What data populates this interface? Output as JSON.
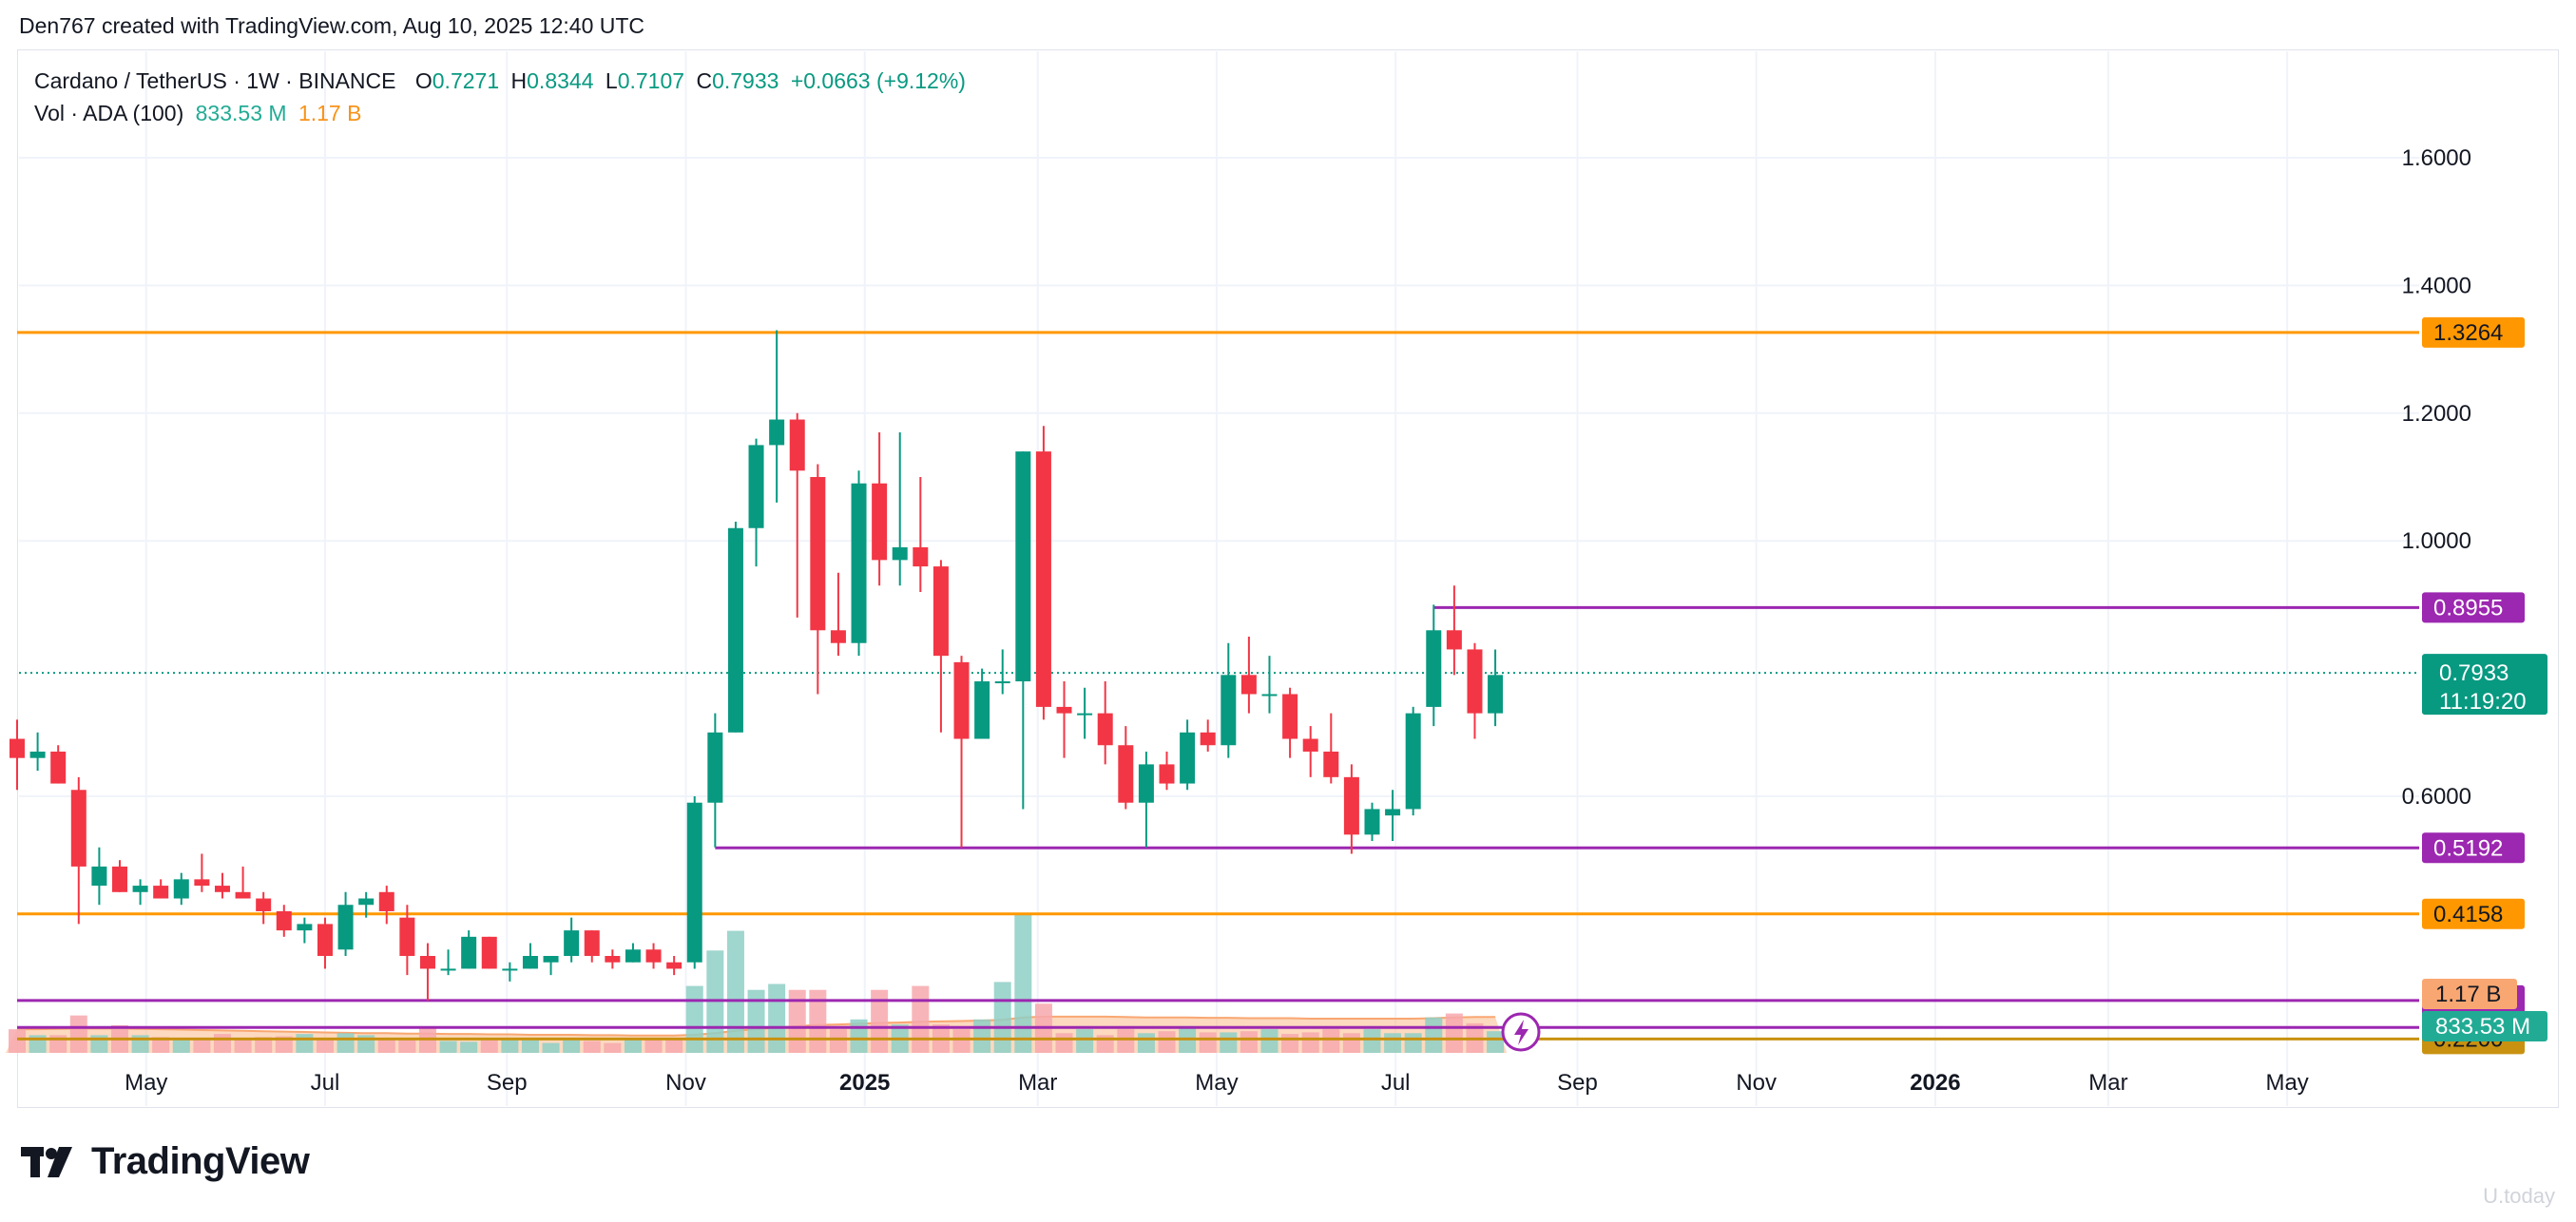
{
  "header": {
    "created_by": "Den767 created with TradingView.com, Aug 10, 2025 12:40 UTC"
  },
  "legend": {
    "symbol": "Cardano / TetherUS · 1W · BINANCE",
    "o_label": "O",
    "o": "0.7271",
    "h_label": "H",
    "h": "0.8344",
    "l_label": "L",
    "l": "0.7107",
    "c_label": "C",
    "c": "0.7933",
    "change": "+0.0663 (+9.12%)",
    "vol_label": "Vol · ADA (100)",
    "vol_value": "833.53 M",
    "vol_ma": "1.17 B"
  },
  "branding": {
    "logo_text": "TradingView",
    "watermark": "U.today"
  },
  "colors": {
    "up": "#089981",
    "down": "#f23645",
    "orange_line": "#ff9800",
    "purple_line": "#9c27b0",
    "gold_line": "#c89110",
    "vol_up": "#8ecfc6",
    "vol_down": "#f7a8ad",
    "vol_ma": "#f9a772",
    "last_price": "#089981"
  },
  "chart_data": {
    "type": "candlestick",
    "title": "Cardano / TetherUS · 1W · BINANCE",
    "ylim": [
      0.2,
      1.8
    ],
    "y_ticks": [
      "1.6000",
      "1.4000",
      "1.2000",
      "1.0000",
      "0.6000"
    ],
    "x_ticks": [
      "May",
      "Jul",
      "Sep",
      "Nov",
      "2025",
      "Mar",
      "May",
      "Jul",
      "Sep",
      "Nov",
      "2026",
      "Mar",
      "May"
    ],
    "x_tick_dates": [
      "2024-05-01",
      "2024-07-01",
      "2024-09-01",
      "2024-11-01",
      "2025-01-01",
      "2025-03-01",
      "2025-05-01",
      "2025-07-01",
      "2025-09-01",
      "2025-11-01",
      "2026-01-01",
      "2026-03-01",
      "2026-05-01"
    ],
    "x_range_dates": [
      "2024-03-18",
      "2026-06-15"
    ],
    "series": [
      {
        "name": "ADAUSDT",
        "candles": [
          {
            "t": "2024-03-18",
            "o": 0.69,
            "h": 0.72,
            "l": 0.61,
            "c": 0.66
          },
          {
            "t": "2024-03-25",
            "o": 0.66,
            "h": 0.7,
            "l": 0.64,
            "c": 0.67
          },
          {
            "t": "2024-04-01",
            "o": 0.67,
            "h": 0.68,
            "l": 0.62,
            "c": 0.62
          },
          {
            "t": "2024-04-08",
            "o": 0.61,
            "h": 0.63,
            "l": 0.4,
            "c": 0.49
          },
          {
            "t": "2024-04-15",
            "o": 0.46,
            "h": 0.52,
            "l": 0.43,
            "c": 0.49
          },
          {
            "t": "2024-04-22",
            "o": 0.49,
            "h": 0.5,
            "l": 0.45,
            "c": 0.45
          },
          {
            "t": "2024-04-29",
            "o": 0.45,
            "h": 0.47,
            "l": 0.43,
            "c": 0.46
          },
          {
            "t": "2024-05-06",
            "o": 0.46,
            "h": 0.47,
            "l": 0.44,
            "c": 0.44
          },
          {
            "t": "2024-05-13",
            "o": 0.44,
            "h": 0.48,
            "l": 0.43,
            "c": 0.47
          },
          {
            "t": "2024-05-20",
            "o": 0.47,
            "h": 0.51,
            "l": 0.45,
            "c": 0.46
          },
          {
            "t": "2024-05-27",
            "o": 0.46,
            "h": 0.48,
            "l": 0.44,
            "c": 0.45
          },
          {
            "t": "2024-06-03",
            "o": 0.45,
            "h": 0.49,
            "l": 0.44,
            "c": 0.44
          },
          {
            "t": "2024-06-10",
            "o": 0.44,
            "h": 0.45,
            "l": 0.4,
            "c": 0.42
          },
          {
            "t": "2024-06-17",
            "o": 0.42,
            "h": 0.43,
            "l": 0.38,
            "c": 0.39
          },
          {
            "t": "2024-06-24",
            "o": 0.39,
            "h": 0.41,
            "l": 0.37,
            "c": 0.4
          },
          {
            "t": "2024-07-01",
            "o": 0.4,
            "h": 0.41,
            "l": 0.33,
            "c": 0.35
          },
          {
            "t": "2024-07-08",
            "o": 0.36,
            "h": 0.45,
            "l": 0.35,
            "c": 0.43
          },
          {
            "t": "2024-07-15",
            "o": 0.43,
            "h": 0.45,
            "l": 0.41,
            "c": 0.44
          },
          {
            "t": "2024-07-22",
            "o": 0.45,
            "h": 0.46,
            "l": 0.4,
            "c": 0.42
          },
          {
            "t": "2024-07-29",
            "o": 0.41,
            "h": 0.43,
            "l": 0.32,
            "c": 0.35
          },
          {
            "t": "2024-08-05",
            "o": 0.35,
            "h": 0.37,
            "l": 0.28,
            "c": 0.33
          },
          {
            "t": "2024-08-12",
            "o": 0.33,
            "h": 0.36,
            "l": 0.32,
            "c": 0.33
          },
          {
            "t": "2024-08-19",
            "o": 0.33,
            "h": 0.39,
            "l": 0.33,
            "c": 0.38
          },
          {
            "t": "2024-08-26",
            "o": 0.38,
            "h": 0.38,
            "l": 0.33,
            "c": 0.33
          },
          {
            "t": "2024-09-02",
            "o": 0.33,
            "h": 0.34,
            "l": 0.31,
            "c": 0.33
          },
          {
            "t": "2024-09-09",
            "o": 0.33,
            "h": 0.37,
            "l": 0.33,
            "c": 0.35
          },
          {
            "t": "2024-09-16",
            "o": 0.34,
            "h": 0.35,
            "l": 0.32,
            "c": 0.35
          },
          {
            "t": "2024-09-23",
            "o": 0.35,
            "h": 0.41,
            "l": 0.34,
            "c": 0.39
          },
          {
            "t": "2024-09-30",
            "o": 0.39,
            "h": 0.39,
            "l": 0.34,
            "c": 0.35
          },
          {
            "t": "2024-10-07",
            "o": 0.35,
            "h": 0.36,
            "l": 0.33,
            "c": 0.34
          },
          {
            "t": "2024-10-14",
            "o": 0.34,
            "h": 0.37,
            "l": 0.34,
            "c": 0.36
          },
          {
            "t": "2024-10-21",
            "o": 0.36,
            "h": 0.37,
            "l": 0.33,
            "c": 0.34
          },
          {
            "t": "2024-10-28",
            "o": 0.34,
            "h": 0.35,
            "l": 0.32,
            "c": 0.33
          },
          {
            "t": "2024-11-04",
            "o": 0.34,
            "h": 0.6,
            "l": 0.33,
            "c": 0.59
          },
          {
            "t": "2024-11-11",
            "o": 0.59,
            "h": 0.73,
            "l": 0.52,
            "c": 0.7
          },
          {
            "t": "2024-11-18",
            "o": 0.7,
            "h": 1.03,
            "l": 0.7,
            "c": 1.02
          },
          {
            "t": "2024-11-25",
            "o": 1.02,
            "h": 1.16,
            "l": 0.96,
            "c": 1.15
          },
          {
            "t": "2024-12-02",
            "o": 1.15,
            "h": 1.33,
            "l": 1.06,
            "c": 1.19
          },
          {
            "t": "2024-12-09",
            "o": 1.19,
            "h": 1.2,
            "l": 0.88,
            "c": 1.11
          },
          {
            "t": "2024-12-16",
            "o": 1.1,
            "h": 1.12,
            "l": 0.76,
            "c": 0.86
          },
          {
            "t": "2024-12-23",
            "o": 0.86,
            "h": 0.95,
            "l": 0.82,
            "c": 0.84
          },
          {
            "t": "2024-12-30",
            "o": 0.84,
            "h": 1.11,
            "l": 0.82,
            "c": 1.09
          },
          {
            "t": "2025-01-06",
            "o": 1.09,
            "h": 1.17,
            "l": 0.93,
            "c": 0.97
          },
          {
            "t": "2025-01-13",
            "o": 0.97,
            "h": 1.17,
            "l": 0.93,
            "c": 0.99
          },
          {
            "t": "2025-01-20",
            "o": 0.99,
            "h": 1.1,
            "l": 0.92,
            "c": 0.96
          },
          {
            "t": "2025-01-27",
            "o": 0.96,
            "h": 0.97,
            "l": 0.7,
            "c": 0.82
          },
          {
            "t": "2025-02-03",
            "o": 0.81,
            "h": 0.82,
            "l": 0.52,
            "c": 0.69
          },
          {
            "t": "2025-02-10",
            "o": 0.69,
            "h": 0.8,
            "l": 0.69,
            "c": 0.78
          },
          {
            "t": "2025-02-17",
            "o": 0.78,
            "h": 0.83,
            "l": 0.76,
            "c": 0.78
          },
          {
            "t": "2025-02-24",
            "o": 0.78,
            "h": 1.14,
            "l": 0.58,
            "c": 1.14
          },
          {
            "t": "2025-03-03",
            "o": 1.14,
            "h": 1.18,
            "l": 0.72,
            "c": 0.74
          },
          {
            "t": "2025-03-10",
            "o": 0.74,
            "h": 0.78,
            "l": 0.66,
            "c": 0.73
          },
          {
            "t": "2025-03-17",
            "o": 0.73,
            "h": 0.77,
            "l": 0.69,
            "c": 0.73
          },
          {
            "t": "2025-03-24",
            "o": 0.73,
            "h": 0.78,
            "l": 0.65,
            "c": 0.68
          },
          {
            "t": "2025-03-31",
            "o": 0.68,
            "h": 0.71,
            "l": 0.58,
            "c": 0.59
          },
          {
            "t": "2025-04-07",
            "o": 0.59,
            "h": 0.67,
            "l": 0.52,
            "c": 0.65
          },
          {
            "t": "2025-04-14",
            "o": 0.65,
            "h": 0.67,
            "l": 0.61,
            "c": 0.62
          },
          {
            "t": "2025-04-21",
            "o": 0.62,
            "h": 0.72,
            "l": 0.61,
            "c": 0.7
          },
          {
            "t": "2025-04-28",
            "o": 0.7,
            "h": 0.72,
            "l": 0.67,
            "c": 0.68
          },
          {
            "t": "2025-05-05",
            "o": 0.68,
            "h": 0.84,
            "l": 0.66,
            "c": 0.79
          },
          {
            "t": "2025-05-12",
            "o": 0.79,
            "h": 0.85,
            "l": 0.73,
            "c": 0.76
          },
          {
            "t": "2025-05-19",
            "o": 0.76,
            "h": 0.82,
            "l": 0.73,
            "c": 0.76
          },
          {
            "t": "2025-05-26",
            "o": 0.76,
            "h": 0.77,
            "l": 0.66,
            "c": 0.69
          },
          {
            "t": "2025-06-02",
            "o": 0.69,
            "h": 0.71,
            "l": 0.63,
            "c": 0.67
          },
          {
            "t": "2025-06-09",
            "o": 0.67,
            "h": 0.73,
            "l": 0.62,
            "c": 0.63
          },
          {
            "t": "2025-06-16",
            "o": 0.63,
            "h": 0.65,
            "l": 0.51,
            "c": 0.54
          },
          {
            "t": "2025-06-23",
            "o": 0.54,
            "h": 0.59,
            "l": 0.53,
            "c": 0.58
          },
          {
            "t": "2025-06-30",
            "o": 0.57,
            "h": 0.61,
            "l": 0.53,
            "c": 0.58
          },
          {
            "t": "2025-07-07",
            "o": 0.58,
            "h": 0.74,
            "l": 0.57,
            "c": 0.73
          },
          {
            "t": "2025-07-14",
            "o": 0.74,
            "h": 0.9,
            "l": 0.71,
            "c": 0.86
          },
          {
            "t": "2025-07-21",
            "o": 0.86,
            "h": 0.93,
            "l": 0.79,
            "c": 0.83
          },
          {
            "t": "2025-07-28",
            "o": 0.83,
            "h": 0.84,
            "l": 0.69,
            "c": 0.73
          },
          {
            "t": "2025-08-04",
            "o": 0.73,
            "h": 0.83,
            "l": 0.71,
            "c": 0.79
          }
        ]
      }
    ],
    "volume": {
      "name": "Vol · ADA (100)",
      "values": [
        0.6,
        0.45,
        0.45,
        0.95,
        0.45,
        0.7,
        0.45,
        0.4,
        0.38,
        0.32,
        0.48,
        0.35,
        0.4,
        0.42,
        0.48,
        0.34,
        0.5,
        0.45,
        0.38,
        0.38,
        0.62,
        0.3,
        0.28,
        0.32,
        0.38,
        0.32,
        0.25,
        0.32,
        0.3,
        0.25,
        0.34,
        0.38,
        0.35,
        1.7,
        2.6,
        3.1,
        1.6,
        1.75,
        1.6,
        1.6,
        0.6,
        0.85,
        1.6,
        0.72,
        1.7,
        0.72,
        0.6,
        0.85,
        1.8,
        3.5,
        1.25,
        0.5,
        0.6,
        0.45,
        0.6,
        0.5,
        0.55,
        0.68,
        0.52,
        0.52,
        0.55,
        0.6,
        0.48,
        0.52,
        0.6,
        0.5,
        0.6,
        0.5,
        0.5,
        0.9,
        1.0,
        0.75,
        0.55
      ],
      "ma": [
        0.6,
        0.6,
        0.61,
        0.62,
        0.62,
        0.62,
        0.61,
        0.6,
        0.59,
        0.58,
        0.57,
        0.56,
        0.55,
        0.54,
        0.53,
        0.52,
        0.51,
        0.5,
        0.5,
        0.49,
        0.49,
        0.48,
        0.48,
        0.47,
        0.47,
        0.46,
        0.46,
        0.46,
        0.45,
        0.45,
        0.44,
        0.44,
        0.44,
        0.46,
        0.5,
        0.56,
        0.6,
        0.64,
        0.68,
        0.71,
        0.72,
        0.74,
        0.76,
        0.77,
        0.79,
        0.8,
        0.81,
        0.82,
        0.84,
        0.9,
        0.92,
        0.92,
        0.92,
        0.92,
        0.91,
        0.9,
        0.9,
        0.9,
        0.89,
        0.89,
        0.88,
        0.88,
        0.88,
        0.87,
        0.87,
        0.87,
        0.87,
        0.87,
        0.87,
        0.88,
        0.9,
        0.91,
        0.91
      ],
      "vol_ylim": [
        0,
        4.8
      ],
      "labels": {
        "ma_label": "1.17 B",
        "vol_label": "833.53 M"
      }
    },
    "horizontal_lines": [
      {
        "value": 1.3264,
        "label": "1.3264",
        "color": "#ff9800",
        "start": "2024-03-18"
      },
      {
        "value": 0.8955,
        "label": "0.8955",
        "color": "#9c27b0",
        "start": "2025-07-14"
      },
      {
        "value": 0.5192,
        "label": "0.5192",
        "color": "#9c27b0",
        "start": "2024-11-11"
      },
      {
        "value": 0.4158,
        "label": "0.4158",
        "color": "#ff9800",
        "start": "2024-03-18"
      },
      {
        "value": 0.2802,
        "label": "0.2802",
        "color": "#9c27b0",
        "start": "2024-03-18"
      },
      {
        "value": 0.238,
        "label": "0.2380",
        "color": "#9c27b0",
        "start": "2024-03-18"
      },
      {
        "value": 0.22,
        "label": "0.2200",
        "color": "#c89110",
        "start": "2024-03-18"
      }
    ],
    "last_price": {
      "value": 0.7933,
      "label": "0.7933",
      "countdown": "11:19:20"
    }
  }
}
